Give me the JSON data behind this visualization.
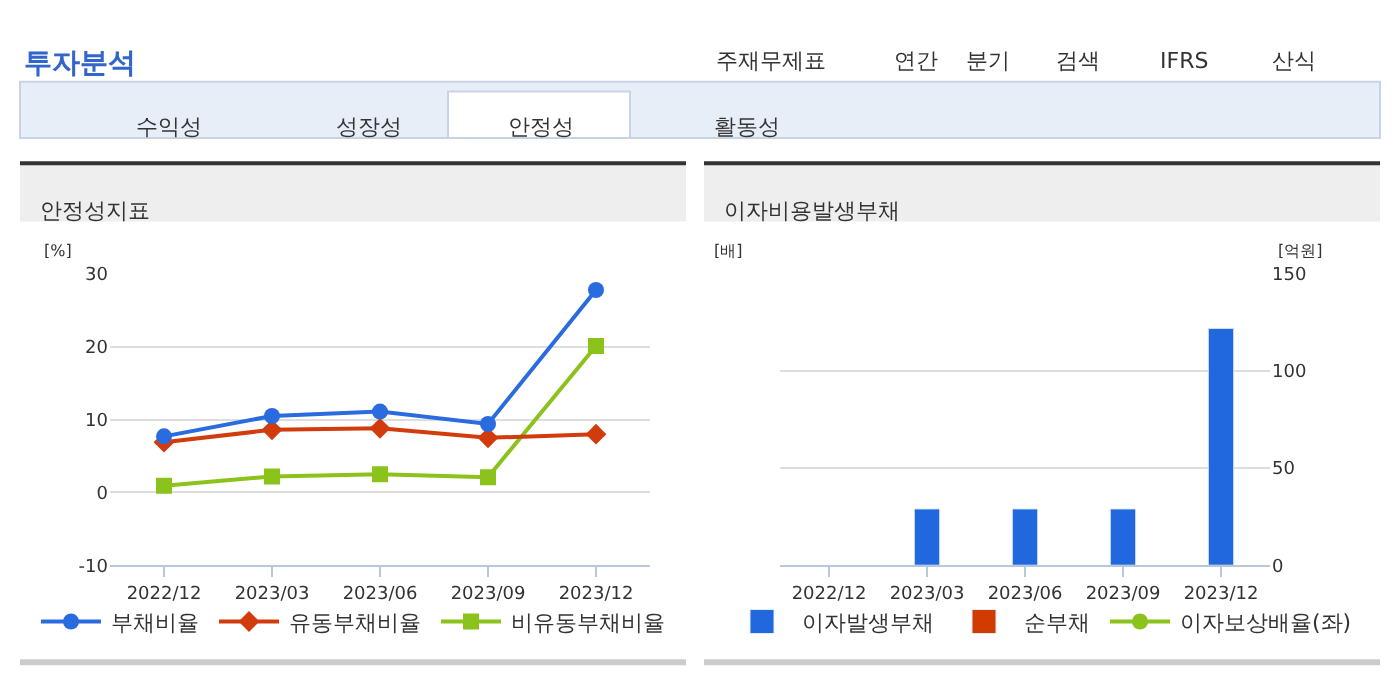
{
  "chart_data": [
    {
      "type": "other",
      "title": "투자분석",
      "annotations": [
        "주재무제표",
        "연간",
        "분기",
        "검색",
        "IFRS",
        "산식",
        "수익성",
        "성장성",
        "안정성",
        "활동성"
      ]
    },
    {
      "type": "line",
      "title": "안정성지표",
      "ylabel": "[%]",
      "categories": [
        "2022/12",
        "2023/03",
        "2023/06",
        "2023/09",
        "2023/12"
      ],
      "ylim": [
        -10,
        30
      ],
      "yticks": [
        -10,
        0,
        10,
        20,
        30
      ],
      "grid": "y",
      "legend": "bottom",
      "series": [
        {
          "name": "부채비율",
          "color": "#2a6bdf",
          "marker": "circle",
          "values": [
            7.7,
            10.5,
            11.1,
            9.4,
            27.8
          ]
        },
        {
          "name": "유동부채비율",
          "color": "#d23c0c",
          "marker": "diamond",
          "values": [
            6.9,
            8.6,
            8.8,
            7.5,
            8.0
          ]
        },
        {
          "name": "비유동부채비율",
          "color": "#8cc21c",
          "marker": "square",
          "values": [
            0.9,
            2.2,
            2.5,
            2.1,
            20.1
          ]
        }
      ]
    },
    {
      "type": "bar",
      "title": "이자비용발생부채",
      "ylabel": "[배]",
      "y2label": "[억원]",
      "categories": [
        "2022/12",
        "2023/03",
        "2023/06",
        "2023/09",
        "2023/12"
      ],
      "y2lim": [
        0,
        150
      ],
      "y2ticks": [
        0,
        50,
        100,
        150
      ],
      "grid": "y2",
      "legend": "bottom",
      "series": [
        {
          "name": "이자발생부채",
          "color": "#2167dd",
          "axis": "y2",
          "values": [
            null,
            29,
            29,
            29,
            122
          ]
        },
        {
          "name": "순부채",
          "color": "#d13b00",
          "axis": "y2",
          "values": [
            null,
            null,
            null,
            null,
            null
          ]
        },
        {
          "name": "이자보상배율(좌)",
          "type": "line",
          "marker": "circle",
          "color": "#8cc21c",
          "values": [
            null,
            null,
            null,
            null,
            null
          ]
        }
      ]
    }
  ]
}
